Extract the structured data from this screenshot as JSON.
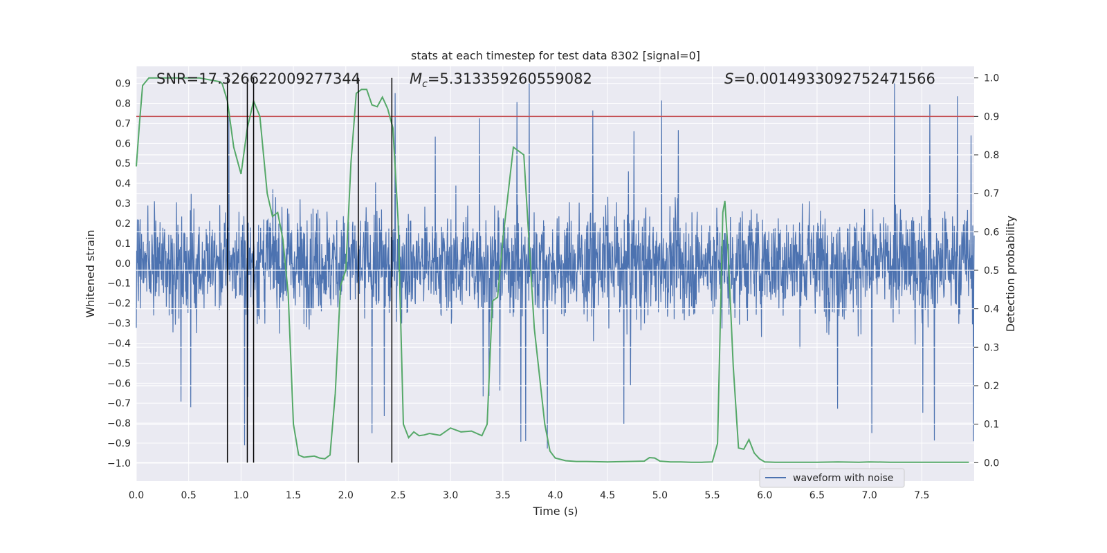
{
  "chart_data": {
    "type": "line",
    "title": "stats at each timestep for test data 8302 [signal=0]",
    "xlabel": "Time (s)",
    "ylabel": "Whitened strain",
    "y2label": "Detection probability",
    "xlim": [
      0.0,
      8.0
    ],
    "ylim": [
      -1.09,
      0.985
    ],
    "y2lim": [
      -0.048,
      1.03
    ],
    "xticks": [
      "0.0",
      "0.5",
      "1.0",
      "1.5",
      "2.0",
      "2.5",
      "3.0",
      "3.5",
      "4.0",
      "4.5",
      "5.0",
      "5.5",
      "6.0",
      "6.5",
      "7.0",
      "7.5"
    ],
    "xtick_values": [
      0.0,
      0.5,
      1.0,
      1.5,
      2.0,
      2.5,
      3.0,
      3.5,
      4.0,
      4.5,
      5.0,
      5.5,
      6.0,
      6.5,
      7.0,
      7.5
    ],
    "yticks": [
      "0.9",
      "0.8",
      "0.7",
      "0.6",
      "0.5",
      "0.4",
      "0.3",
      "0.2",
      "0.1",
      "0.0",
      "−0.1",
      "−0.2",
      "−0.3",
      "−0.4",
      "−0.5",
      "−0.6",
      "−0.7",
      "−0.8",
      "−0.9",
      "−1.0"
    ],
    "ytick_values": [
      0.9,
      0.8,
      0.7,
      0.6,
      0.5,
      0.4,
      0.3,
      0.2,
      0.1,
      0.0,
      -0.1,
      -0.2,
      -0.3,
      -0.4,
      -0.5,
      -0.6,
      -0.7,
      -0.8,
      -0.9,
      -1.0
    ],
    "y2ticks": [
      "1.0",
      "0.9",
      "0.8",
      "0.7",
      "0.6",
      "0.5",
      "0.4",
      "0.3",
      "0.2",
      "0.1",
      "0.0"
    ],
    "y2tick_values": [
      1.0,
      0.9,
      0.8,
      0.7,
      0.6,
      0.5,
      0.4,
      0.3,
      0.2,
      0.1,
      0.0
    ],
    "stats": {
      "snr": "SNR=17.326622009277344",
      "mc_symbol": "M",
      "mc_sub": "c",
      "mc_value": "=5.313359260559082",
      "s_symbol": "S",
      "s_value": "=0.0014933092752471566"
    },
    "legend": {
      "label": "waveform with noise",
      "location": "lower-right"
    },
    "threshold": {
      "y2": 0.9,
      "color": "#c44e52"
    },
    "vertical_lines": [
      0.87,
      1.06,
      1.12,
      2.12,
      2.44
    ],
    "colors": {
      "waveform": "#4c72b0",
      "probability": "#55a868",
      "threshold": "#c44e52",
      "vlines": "#000000",
      "plot_bg": "#eaeaf2",
      "grid": "#ffffff"
    },
    "series": [
      {
        "name": "waveform with noise",
        "axis": "left",
        "style": "dense noise, typical amplitude ±0.35, occasional spikes to 0.9 and −1.0"
      },
      {
        "name": "detection probability",
        "axis": "right",
        "x": [
          0.0,
          0.03,
          0.06,
          0.12,
          0.2,
          0.3,
          0.4,
          0.5,
          0.6,
          0.7,
          0.8,
          0.82,
          0.87,
          0.93,
          1.0,
          1.06,
          1.12,
          1.18,
          1.25,
          1.3,
          1.35,
          1.4,
          1.45,
          1.5,
          1.55,
          1.6,
          1.7,
          1.75,
          1.8,
          1.85,
          1.9,
          1.95,
          2.0,
          2.05,
          2.1,
          2.15,
          2.2,
          2.25,
          2.3,
          2.35,
          2.4,
          2.45,
          2.5,
          2.55,
          2.6,
          2.65,
          2.7,
          2.75,
          2.8,
          2.9,
          3.0,
          3.1,
          3.2,
          3.3,
          3.35,
          3.4,
          3.45,
          3.5,
          3.6,
          3.7,
          3.8,
          3.9,
          3.95,
          4.0,
          4.1,
          4.2,
          4.3,
          4.5,
          4.7,
          4.85,
          4.9,
          4.95,
          5.0,
          5.1,
          5.2,
          5.3,
          5.4,
          5.5,
          5.55,
          5.6,
          5.62,
          5.65,
          5.7,
          5.75,
          5.8,
          5.85,
          5.9,
          5.95,
          6.0,
          6.1,
          6.3,
          6.5,
          6.7,
          6.9,
          7.0,
          7.2,
          7.5,
          7.8,
          7.95
        ],
        "y": [
          0.77,
          0.88,
          0.98,
          1.0,
          1.0,
          1.0,
          1.0,
          1.0,
          1.0,
          0.995,
          0.99,
          0.985,
          0.94,
          0.82,
          0.75,
          0.87,
          0.94,
          0.9,
          0.7,
          0.64,
          0.65,
          0.58,
          0.44,
          0.1,
          0.02,
          0.014,
          0.017,
          0.012,
          0.01,
          0.02,
          0.18,
          0.46,
          0.5,
          0.78,
          0.96,
          0.97,
          0.97,
          0.93,
          0.925,
          0.95,
          0.92,
          0.87,
          0.63,
          0.1,
          0.065,
          0.08,
          0.07,
          0.072,
          0.076,
          0.071,
          0.09,
          0.08,
          0.082,
          0.07,
          0.1,
          0.42,
          0.43,
          0.58,
          0.82,
          0.8,
          0.35,
          0.1,
          0.03,
          0.012,
          0.005,
          0.003,
          0.003,
          0.002,
          0.003,
          0.004,
          0.013,
          0.012,
          0.004,
          0.002,
          0.002,
          0.001,
          0.001,
          0.002,
          0.05,
          0.65,
          0.68,
          0.55,
          0.25,
          0.038,
          0.035,
          0.06,
          0.025,
          0.01,
          0.002,
          0.001,
          0.001,
          0.001,
          0.002,
          0.001,
          0.002,
          0.001,
          0.001,
          0.001,
          0.001
        ]
      }
    ]
  }
}
